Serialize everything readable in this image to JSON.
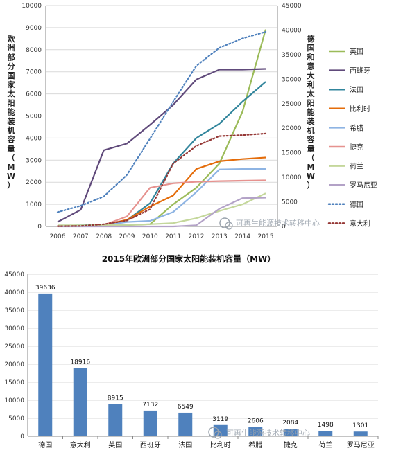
{
  "chart_data": [
    {
      "type": "line",
      "title": "",
      "left_axis_label": "欧洲部分国家太阳能装机容量（MW）",
      "right_axis_label": "德国和意大利太阳能装机容量（MW）",
      "x": [
        "2006",
        "2007",
        "2008",
        "2009",
        "2010",
        "2011",
        "2012",
        "2013",
        "2014",
        "2015"
      ],
      "ylim_left": [
        0,
        10000
      ],
      "yticks_left": [
        "0",
        "1000",
        "2000",
        "3000",
        "4000",
        "5000",
        "6000",
        "7000",
        "8000",
        "9000",
        "10000"
      ],
      "ylim_right": [
        0,
        45000
      ],
      "yticks_right": [
        "0",
        "5000",
        "10000",
        "15000",
        "20000",
        "25000",
        "30000",
        "35000",
        "40000",
        "45000"
      ],
      "grid": true,
      "legend_position": "right",
      "series": [
        {
          "name": "英国",
          "color": "#9bbb59",
          "axis": "left",
          "style": "solid",
          "values": [
            10,
            20,
            30,
            60,
            100,
            1000,
            1750,
            2850,
            5200,
            8915
          ]
        },
        {
          "name": "西班牙",
          "color": "#604a7b",
          "axis": "left",
          "style": "solid",
          "values": [
            200,
            750,
            3450,
            3750,
            4600,
            5500,
            6650,
            7100,
            7100,
            7132
          ]
        },
        {
          "name": "法国",
          "color": "#31859c",
          "axis": "left",
          "style": "solid",
          "values": [
            30,
            50,
            80,
            280,
            1050,
            2850,
            4000,
            4650,
            5650,
            6549
          ]
        },
        {
          "name": "比利时",
          "color": "#e46c0a",
          "axis": "left",
          "style": "solid",
          "values": [
            10,
            20,
            70,
            300,
            900,
            1400,
            2600,
            2950,
            3050,
            3119
          ]
        },
        {
          "name": "希腊",
          "color": "#8eb4e3",
          "axis": "left",
          "style": "solid",
          "values": [
            10,
            20,
            50,
            200,
            250,
            650,
            1550,
            2580,
            2600,
            2606
          ]
        },
        {
          "name": "捷克",
          "color": "#e6928f",
          "axis": "left",
          "style": "solid",
          "values": [
            10,
            20,
            60,
            450,
            1750,
            1950,
            2020,
            2050,
            2070,
            2084
          ]
        },
        {
          "name": "荷兰",
          "color": "#c4d79b",
          "axis": "left",
          "style": "solid",
          "values": [
            50,
            50,
            60,
            70,
            100,
            150,
            370,
            700,
            1000,
            1498
          ]
        },
        {
          "name": "罗马尼亚",
          "color": "#b3a2c7",
          "axis": "left",
          "style": "solid",
          "values": [
            0,
            0,
            0,
            0,
            0,
            0,
            50,
            800,
            1280,
            1301
          ]
        },
        {
          "name": "德国",
          "color": "#4f81bd",
          "axis": "right",
          "style": "dotted",
          "values": [
            2900,
            4200,
            6100,
            10500,
            17900,
            25400,
            32700,
            36400,
            38300,
            39636
          ]
        },
        {
          "name": "意大利",
          "color": "#953735",
          "axis": "right",
          "style": "dotted",
          "values": [
            50,
            100,
            450,
            1200,
            3500,
            12800,
            16400,
            18400,
            18600,
            18916
          ]
        }
      ]
    },
    {
      "type": "bar",
      "title": "2015年欧洲部分国家太阳能装机容量（MW）",
      "categories": [
        "德国",
        "意大利",
        "英国",
        "西班牙",
        "法国",
        "比利时",
        "希腊",
        "捷克",
        "荷兰",
        "罗马尼亚"
      ],
      "values": [
        39636,
        18916,
        8915,
        7132,
        6549,
        3119,
        2606,
        2084,
        1498,
        1301
      ],
      "value_labels": [
        "39636",
        "18916",
        "8915",
        "7132",
        "6549",
        "3119",
        "2606",
        "2084",
        "1498",
        "1301"
      ],
      "ylim": [
        0,
        45000
      ],
      "yticks": [
        "0",
        "5000",
        "10000",
        "15000",
        "20000",
        "25000",
        "30000",
        "35000",
        "40000",
        "45000"
      ],
      "color": "#4f81bd",
      "grid": true
    }
  ],
  "watermark": "可再生能源技术转移中心"
}
